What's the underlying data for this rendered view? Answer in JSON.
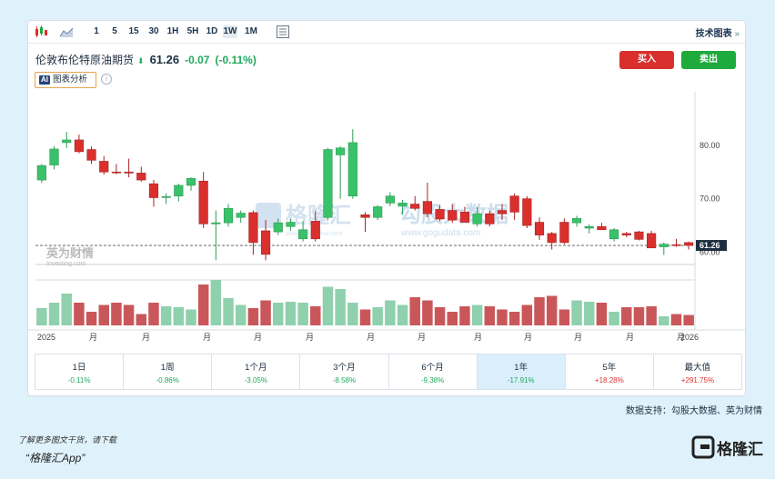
{
  "toolbar": {
    "intervals": [
      "1",
      "5",
      "15",
      "30",
      "1H",
      "5H",
      "1D",
      "1W",
      "1M"
    ],
    "active": "1W",
    "right_label": "技术图表",
    "right_arrow": "»"
  },
  "instrument": {
    "name": "伦敦布伦特原油期货",
    "price": "61.26",
    "change": "-0.07",
    "change_pct": "(-0.11%)"
  },
  "buttons": {
    "buy": "买入",
    "sell": "卖出"
  },
  "ai": {
    "badge": "AI",
    "label": "图表分析"
  },
  "watermarks": {
    "gelonghui": "格隆汇",
    "gelonghui_url": "www.gelonghui.com",
    "gogudata": "勾股大数据",
    "gogudata_url": "www.gogudata.com",
    "investing": "英为财情",
    "investing_en": "Investing.com"
  },
  "chart_data": {
    "type": "candlestick",
    "y_ticks": [
      60,
      70,
      80
    ],
    "y_tick_labels": [
      "60.00",
      "70.00",
      "80.00"
    ],
    "ylim": [
      56,
      90
    ],
    "current_price": 61.26,
    "current_price_label": "61.26",
    "x_labels": [
      "2025",
      "月",
      "月",
      "月",
      "月",
      "月",
      "月",
      "月",
      "月",
      "月",
      "月",
      "月",
      "月",
      "2026"
    ],
    "candles": [
      {
        "o": 73.5,
        "h": 76.5,
        "l": 73,
        "c": 76.2
      },
      {
        "o": 76.3,
        "h": 79.8,
        "l": 75.5,
        "c": 79.3
      },
      {
        "o": 80.5,
        "h": 82.5,
        "l": 79.5,
        "c": 81
      },
      {
        "o": 81,
        "h": 82,
        "l": 78.5,
        "c": 78.8
      },
      {
        "o": 79.2,
        "h": 79.8,
        "l": 76.5,
        "c": 77.2
      },
      {
        "o": 77,
        "h": 78,
        "l": 74.5,
        "c": 75
      },
      {
        "o": 75,
        "h": 76.5,
        "l": 74.6,
        "c": 74.9
      },
      {
        "o": 75,
        "h": 77.5,
        "l": 74,
        "c": 74.8
      },
      {
        "o": 74.8,
        "h": 76,
        "l": 73.2,
        "c": 73.5
      },
      {
        "o": 72.8,
        "h": 73.5,
        "l": 68.5,
        "c": 70.2
      },
      {
        "o": 70.3,
        "h": 71,
        "l": 69,
        "c": 70.4
      },
      {
        "o": 70.5,
        "h": 72.8,
        "l": 69.5,
        "c": 72.5
      },
      {
        "o": 72.5,
        "h": 74,
        "l": 71.5,
        "c": 73.8
      },
      {
        "o": 73.3,
        "h": 75,
        "l": 64.5,
        "c": 65.3
      },
      {
        "o": 65.3,
        "h": 67.8,
        "l": 58.5,
        "c": 65.5
      },
      {
        "o": 65.5,
        "h": 69,
        "l": 64.8,
        "c": 68.2
      },
      {
        "o": 66.5,
        "h": 67.8,
        "l": 65.5,
        "c": 67.3
      },
      {
        "o": 67.4,
        "h": 67.8,
        "l": 59.5,
        "c": 61.8
      },
      {
        "o": 64,
        "h": 66,
        "l": 58.5,
        "c": 59.6
      },
      {
        "o": 63.8,
        "h": 66.3,
        "l": 63.2,
        "c": 65.5
      },
      {
        "o": 64.8,
        "h": 66.2,
        "l": 64,
        "c": 65.6
      },
      {
        "o": 62.5,
        "h": 65.8,
        "l": 62,
        "c": 64.2
      },
      {
        "o": 65.8,
        "h": 67.8,
        "l": 62,
        "c": 62.5
      },
      {
        "o": 66.5,
        "h": 79.5,
        "l": 66,
        "c": 79.2
      },
      {
        "o": 78.2,
        "h": 79.8,
        "l": 70,
        "c": 79.5
      },
      {
        "o": 70.5,
        "h": 83,
        "l": 70,
        "c": 80.5
      },
      {
        "o": 67,
        "h": 67.5,
        "l": 63.8,
        "c": 66.5
      },
      {
        "o": 66.5,
        "h": 68.8,
        "l": 66,
        "c": 68.5
      },
      {
        "o": 69.2,
        "h": 71.2,
        "l": 68.6,
        "c": 70.5
      },
      {
        "o": 68.6,
        "h": 69.8,
        "l": 67,
        "c": 69.2
      },
      {
        "o": 69,
        "h": 70.5,
        "l": 67.8,
        "c": 68.2
      },
      {
        "o": 69.5,
        "h": 73,
        "l": 66.5,
        "c": 67.2
      },
      {
        "o": 68,
        "h": 68.8,
        "l": 65.8,
        "c": 66.2
      },
      {
        "o": 67.8,
        "h": 69,
        "l": 65.5,
        "c": 66
      },
      {
        "o": 67.5,
        "h": 68.5,
        "l": 65.5,
        "c": 65.6
      },
      {
        "o": 65.3,
        "h": 68.5,
        "l": 64.8,
        "c": 67.2
      },
      {
        "o": 67.2,
        "h": 67.8,
        "l": 64.8,
        "c": 65.3
      },
      {
        "o": 67.8,
        "h": 69,
        "l": 66,
        "c": 67.2
      },
      {
        "o": 70.5,
        "h": 71,
        "l": 66,
        "c": 67.5
      },
      {
        "o": 70,
        "h": 70.5,
        "l": 64.5,
        "c": 65
      },
      {
        "o": 65.6,
        "h": 66.5,
        "l": 62.3,
        "c": 63.2
      },
      {
        "o": 63.5,
        "h": 63.8,
        "l": 60.5,
        "c": 61.8
      },
      {
        "o": 65.6,
        "h": 66.3,
        "l": 61.5,
        "c": 61.8
      },
      {
        "o": 65.5,
        "h": 66.8,
        "l": 64.8,
        "c": 66.3
      },
      {
        "o": 64.5,
        "h": 65.2,
        "l": 63.5,
        "c": 64.8
      },
      {
        "o": 64.8,
        "h": 65.5,
        "l": 64.3,
        "c": 64.2
      },
      {
        "o": 62.5,
        "h": 64.5,
        "l": 62,
        "c": 64.2
      },
      {
        "o": 63.5,
        "h": 63.8,
        "l": 62.8,
        "c": 63.2
      },
      {
        "o": 63.8,
        "h": 64,
        "l": 62.2,
        "c": 62.4
      },
      {
        "o": 63.5,
        "h": 64,
        "l": 60.8,
        "c": 60.8
      },
      {
        "o": 61,
        "h": 61.8,
        "l": 59.5,
        "c": 61.5
      },
      {
        "o": 61.4,
        "h": 62.5,
        "l": 61,
        "c": 61.3
      },
      {
        "o": 61.8,
        "h": 62,
        "l": 60.5,
        "c": 61.3
      }
    ],
    "volume": [
      0.38,
      0.5,
      0.7,
      0.5,
      0.3,
      0.45,
      0.5,
      0.45,
      0.25,
      0.5,
      0.42,
      0.4,
      0.35,
      0.9,
      1.0,
      0.6,
      0.45,
      0.38,
      0.55,
      0.5,
      0.52,
      0.5,
      0.42,
      0.85,
      0.8,
      0.5,
      0.35,
      0.4,
      0.55,
      0.45,
      0.62,
      0.55,
      0.4,
      0.3,
      0.42,
      0.45,
      0.42,
      0.35,
      0.3,
      0.45,
      0.62,
      0.65,
      0.35,
      0.55,
      0.52,
      0.5,
      0.3,
      0.4,
      0.4,
      0.42,
      0.2,
      0.25,
      0.23
    ]
  },
  "periods": [
    {
      "label": "1日",
      "value": "-0.11%",
      "dir": "neg"
    },
    {
      "label": "1周",
      "value": "-0.86%",
      "dir": "neg"
    },
    {
      "label": "1个月",
      "value": "-3.05%",
      "dir": "neg"
    },
    {
      "label": "3个月",
      "value": "-8.58%",
      "dir": "neg"
    },
    {
      "label": "6个月",
      "value": "-9.38%",
      "dir": "neg"
    },
    {
      "label": "1年",
      "value": "-17.91%",
      "dir": "neg"
    },
    {
      "label": "5年",
      "value": "+18.28%",
      "dir": "pos"
    },
    {
      "label": "最大值",
      "value": "+291.75%",
      "dir": "pos"
    }
  ],
  "active_period": "1年",
  "source": "数据支持：勾股大数据、英为财情",
  "footer": {
    "note": "了解更多图文干货，请下载",
    "app": "“格隆汇App”",
    "logo_text": "格隆汇"
  },
  "colors": {
    "up": "#d9302e",
    "down": "#3ac26a",
    "up_vol": "#c9575a",
    "down_vol": "#8fd0ad"
  }
}
